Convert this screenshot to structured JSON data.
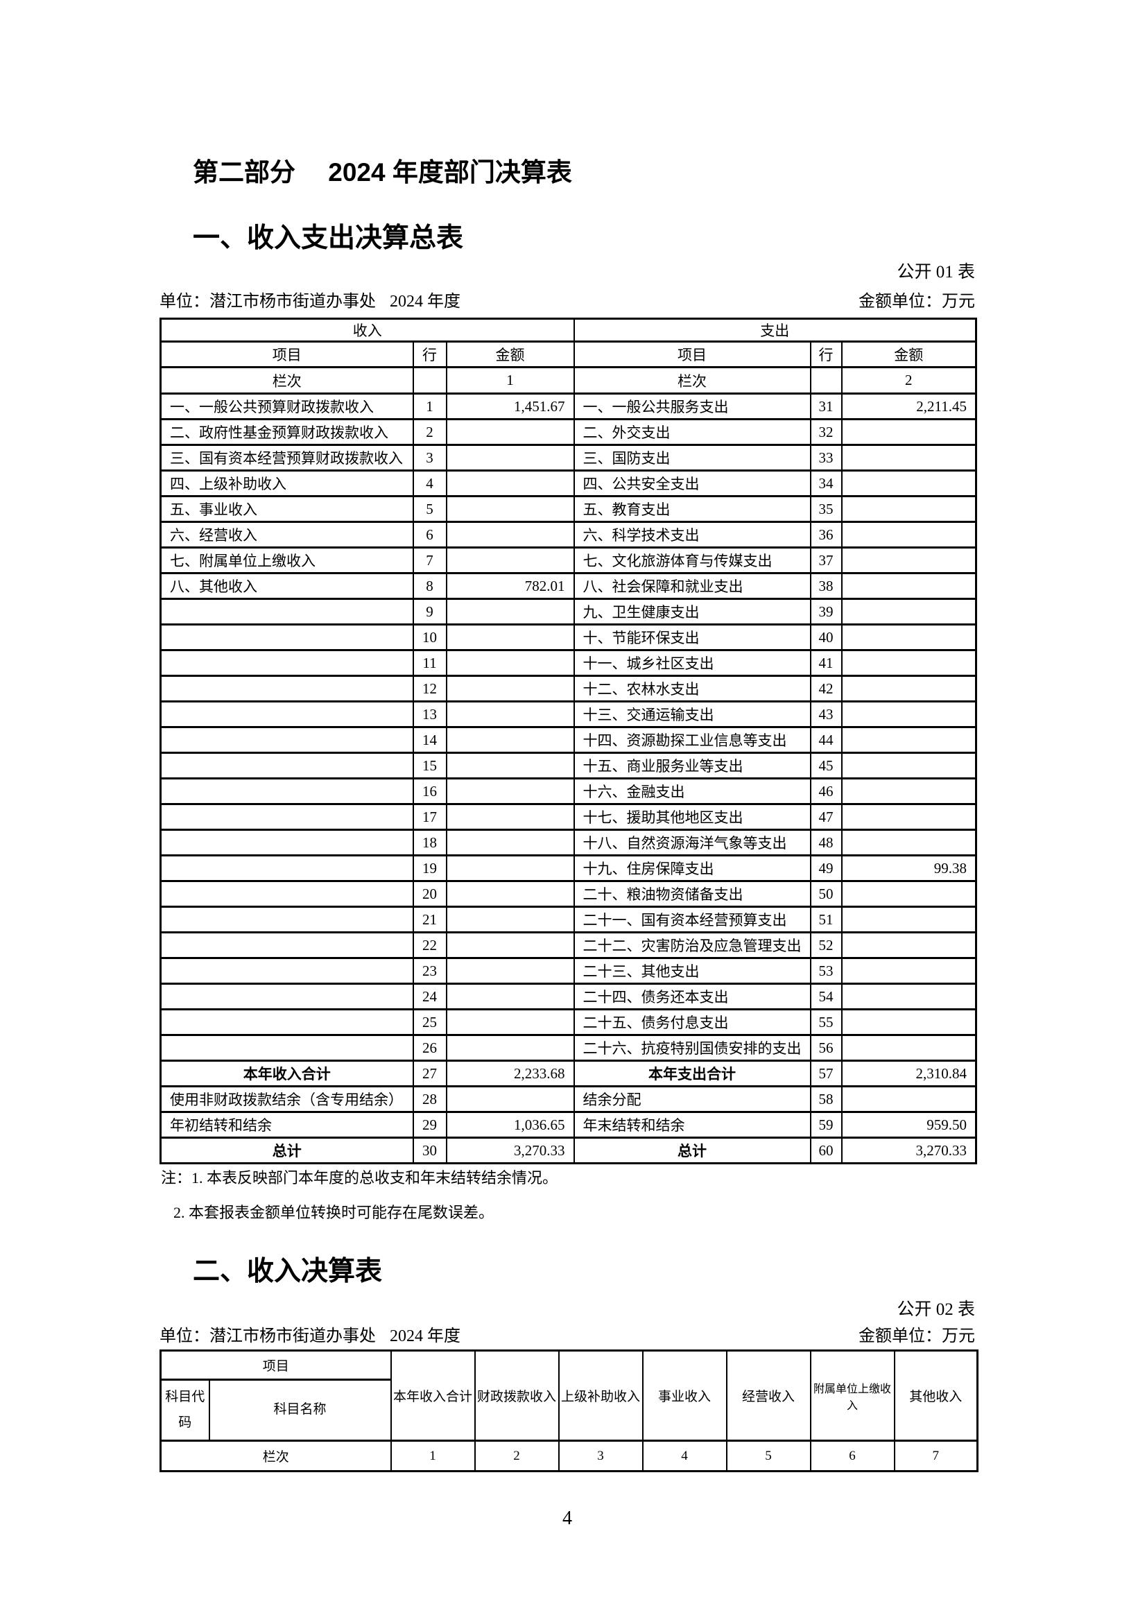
{
  "page": {
    "part_title": "第二部分　 2024 年度部门决算表",
    "page_number": "4"
  },
  "section1": {
    "title": "一、收入支出决算总表",
    "table_label": "公开 01 表",
    "unit_label": "单位：潜江市杨市街道办事处",
    "year_label": "2024 年度",
    "amount_unit_label": "金额单位：万元",
    "income_header": "收入",
    "expense_header": "支出",
    "col_item": "项目",
    "col_line": "行",
    "col_amount": "金额",
    "index_row_label": "栏次",
    "income_index": "1",
    "expense_index": "2",
    "income_rows": [
      {
        "item": "一、一般公共预算财政拨款收入",
        "line": "1",
        "amount": "1,451.67"
      },
      {
        "item": "二、政府性基金预算财政拨款收入",
        "line": "2",
        "amount": ""
      },
      {
        "item": "三、国有资本经营预算财政拨款收入",
        "line": "3",
        "amount": ""
      },
      {
        "item": "四、上级补助收入",
        "line": "4",
        "amount": ""
      },
      {
        "item": "五、事业收入",
        "line": "5",
        "amount": ""
      },
      {
        "item": "六、经营收入",
        "line": "6",
        "amount": ""
      },
      {
        "item": "七、附属单位上缴收入",
        "line": "7",
        "amount": ""
      },
      {
        "item": "八、其他收入",
        "line": "8",
        "amount": "782.01"
      },
      {
        "item": "",
        "line": "9",
        "amount": ""
      },
      {
        "item": "",
        "line": "10",
        "amount": ""
      },
      {
        "item": "",
        "line": "11",
        "amount": ""
      },
      {
        "item": "",
        "line": "12",
        "amount": ""
      },
      {
        "item": "",
        "line": "13",
        "amount": ""
      },
      {
        "item": "",
        "line": "14",
        "amount": ""
      },
      {
        "item": "",
        "line": "15",
        "amount": ""
      },
      {
        "item": "",
        "line": "16",
        "amount": ""
      },
      {
        "item": "",
        "line": "17",
        "amount": ""
      },
      {
        "item": "",
        "line": "18",
        "amount": ""
      },
      {
        "item": "",
        "line": "19",
        "amount": ""
      },
      {
        "item": "",
        "line": "20",
        "amount": ""
      },
      {
        "item": "",
        "line": "21",
        "amount": ""
      },
      {
        "item": "",
        "line": "22",
        "amount": ""
      },
      {
        "item": "",
        "line": "23",
        "amount": ""
      },
      {
        "item": "",
        "line": "24",
        "amount": ""
      },
      {
        "item": "",
        "line": "25",
        "amount": ""
      },
      {
        "item": "",
        "line": "26",
        "amount": ""
      },
      {
        "item": "本年收入合计",
        "line": "27",
        "amount": "2,233.68",
        "is_total": true
      },
      {
        "item": "使用非财政拨款结余（含专用结余）",
        "line": "28",
        "amount": ""
      },
      {
        "item": "年初结转和结余",
        "line": "29",
        "amount": "1,036.65"
      },
      {
        "item": "总计",
        "line": "30",
        "amount": "3,270.33",
        "is_total": true
      }
    ],
    "expense_rows": [
      {
        "item": "一、一般公共服务支出",
        "line": "31",
        "amount": "2,211.45"
      },
      {
        "item": "二、外交支出",
        "line": "32",
        "amount": ""
      },
      {
        "item": "三、国防支出",
        "line": "33",
        "amount": ""
      },
      {
        "item": "四、公共安全支出",
        "line": "34",
        "amount": ""
      },
      {
        "item": "五、教育支出",
        "line": "35",
        "amount": ""
      },
      {
        "item": "六、科学技术支出",
        "line": "36",
        "amount": ""
      },
      {
        "item": "七、文化旅游体育与传媒支出",
        "line": "37",
        "amount": ""
      },
      {
        "item": "八、社会保障和就业支出",
        "line": "38",
        "amount": ""
      },
      {
        "item": "九、卫生健康支出",
        "line": "39",
        "amount": ""
      },
      {
        "item": "十、节能环保支出",
        "line": "40",
        "amount": ""
      },
      {
        "item": "十一、城乡社区支出",
        "line": "41",
        "amount": ""
      },
      {
        "item": "十二、农林水支出",
        "line": "42",
        "amount": ""
      },
      {
        "item": "十三、交通运输支出",
        "line": "43",
        "amount": ""
      },
      {
        "item": "十四、资源勘探工业信息等支出",
        "line": "44",
        "amount": ""
      },
      {
        "item": "十五、商业服务业等支出",
        "line": "45",
        "amount": ""
      },
      {
        "item": "十六、金融支出",
        "line": "46",
        "amount": ""
      },
      {
        "item": "十七、援助其他地区支出",
        "line": "47",
        "amount": ""
      },
      {
        "item": "十八、自然资源海洋气象等支出",
        "line": "48",
        "amount": ""
      },
      {
        "item": "十九、住房保障支出",
        "line": "49",
        "amount": "99.38"
      },
      {
        "item": "二十、粮油物资储备支出",
        "line": "50",
        "amount": ""
      },
      {
        "item": "二十一、国有资本经营预算支出",
        "line": "51",
        "amount": ""
      },
      {
        "item": "二十二、灾害防治及应急管理支出",
        "line": "52",
        "amount": ""
      },
      {
        "item": "二十三、其他支出",
        "line": "53",
        "amount": ""
      },
      {
        "item": "二十四、债务还本支出",
        "line": "54",
        "amount": ""
      },
      {
        "item": "二十五、债务付息支出",
        "line": "55",
        "amount": ""
      },
      {
        "item": "二十六、抗疫特别国债安排的支出",
        "line": "56",
        "amount": ""
      },
      {
        "item": "本年支出合计",
        "line": "57",
        "amount": "2,310.84",
        "is_total": true
      },
      {
        "item": "结余分配",
        "line": "58",
        "amount": ""
      },
      {
        "item": "年末结转和结余",
        "line": "59",
        "amount": "959.50"
      },
      {
        "item": "总计",
        "line": "60",
        "amount": "3,270.33",
        "is_total": true
      }
    ]
  },
  "notes": {
    "line1": "注：1. 本表反映部门本年度的总收支和年末结转结余情况。",
    "line2": "2. 本套报表金额单位转换时可能存在尾数误差。"
  },
  "section2": {
    "title": "二、收入决算表",
    "table_label": "公开 02 表",
    "unit_label": "单位：潜江市杨市街道办事处",
    "year_label": "2024 年度",
    "amount_unit_label": "金额单位：万元",
    "header": {
      "item": "项目",
      "code": "科目代码",
      "name": "科目名称",
      "columns": [
        "本年收入合计",
        "财政拨款收入",
        "上级补助收入",
        "事业收入",
        "经营收入",
        "附属单位上缴收入",
        "其他收入"
      ],
      "index_row_label": "栏次",
      "indices": [
        "1",
        "2",
        "3",
        "4",
        "5",
        "6",
        "7"
      ]
    }
  }
}
